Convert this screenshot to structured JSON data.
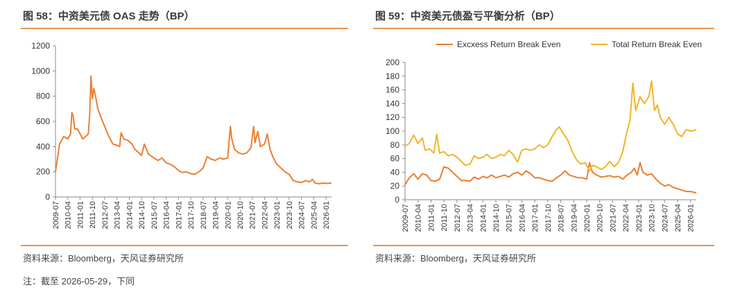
{
  "colors": {
    "accent": "#e6954f",
    "excess": "#ec7d31",
    "total": "#f0b429"
  },
  "left": {
    "title": "图 58：中资美元债 OAS 走势（BP）",
    "source": "资料来源：Bloomberg，天风证券研究所",
    "chart_data": {
      "type": "line",
      "title": "图 58：中资美元债 OAS 走势（BP）",
      "ylim": [
        0,
        1200
      ],
      "yticks": [
        "0",
        "200",
        "400",
        "600",
        "800",
        "1000",
        "1200"
      ],
      "xticks": [
        "2009-07",
        "2010-04",
        "2011-01",
        "2011-10",
        "2012-07",
        "2013-04",
        "2014-01",
        "2014-10",
        "2015-07",
        "2016-04",
        "2017-01",
        "2017-10",
        "2018-07",
        "2019-04",
        "2020-01",
        "2020-10",
        "2021-07",
        "2022-04",
        "2023-01",
        "2023-10",
        "2024-07",
        "2025-04",
        "2026-01"
      ],
      "series": [
        {
          "color": "#ec7d31",
          "points": [
            [
              "2009-07",
              200
            ],
            [
              "2009-10",
              420
            ],
            [
              "2010-01",
              480
            ],
            [
              "2010-04",
              460
            ],
            [
              "2010-06",
              500
            ],
            [
              "2010-07",
              670
            ],
            [
              "2010-08",
              640
            ],
            [
              "2010-09",
              540
            ],
            [
              "2010-11",
              540
            ],
            [
              "2011-01",
              500
            ],
            [
              "2011-03",
              460
            ],
            [
              "2011-05",
              480
            ],
            [
              "2011-07",
              500
            ],
            [
              "2011-08",
              650
            ],
            [
              "2011-09",
              960
            ],
            [
              "2011-10",
              780
            ],
            [
              "2011-11",
              860
            ],
            [
              "2011-12",
              820
            ],
            [
              "2012-02",
              700
            ],
            [
              "2012-04",
              640
            ],
            [
              "2012-07",
              560
            ],
            [
              "2012-10",
              480
            ],
            [
              "2013-01",
              420
            ],
            [
              "2013-04",
              410
            ],
            [
              "2013-06",
              400
            ],
            [
              "2013-07",
              510
            ],
            [
              "2013-09",
              460
            ],
            [
              "2013-12",
              450
            ],
            [
              "2014-03",
              420
            ],
            [
              "2014-05",
              380
            ],
            [
              "2014-08",
              350
            ],
            [
              "2014-10",
              330
            ],
            [
              "2014-12",
              420
            ],
            [
              "2015-03",
              340
            ],
            [
              "2015-07",
              310
            ],
            [
              "2015-10",
              290
            ],
            [
              "2016-01",
              310
            ],
            [
              "2016-04",
              270
            ],
            [
              "2016-07",
              260
            ],
            [
              "2016-10",
              240
            ],
            [
              "2017-01",
              210
            ],
            [
              "2017-04",
              195
            ],
            [
              "2017-07",
              200
            ],
            [
              "2017-10",
              185
            ],
            [
              "2018-01",
              180
            ],
            [
              "2018-04",
              200
            ],
            [
              "2018-07",
              230
            ],
            [
              "2018-10",
              320
            ],
            [
              "2019-01",
              300
            ],
            [
              "2019-04",
              290
            ],
            [
              "2019-07",
              310
            ],
            [
              "2019-10",
              300
            ],
            [
              "2020-01",
              310
            ],
            [
              "2020-03",
              560
            ],
            [
              "2020-04",
              460
            ],
            [
              "2020-06",
              380
            ],
            [
              "2020-09",
              350
            ],
            [
              "2020-12",
              340
            ],
            [
              "2021-03",
              350
            ],
            [
              "2021-06",
              390
            ],
            [
              "2021-08",
              560
            ],
            [
              "2021-09",
              430
            ],
            [
              "2021-11",
              520
            ],
            [
              "2022-01",
              400
            ],
            [
              "2022-04",
              420
            ],
            [
              "2022-06",
              500
            ],
            [
              "2022-08",
              380
            ],
            [
              "2022-10",
              320
            ],
            [
              "2023-01",
              260
            ],
            [
              "2023-04",
              230
            ],
            [
              "2023-07",
              200
            ],
            [
              "2023-10",
              180
            ],
            [
              "2024-01",
              130
            ],
            [
              "2024-04",
              120
            ],
            [
              "2024-07",
              115
            ],
            [
              "2024-10",
              130
            ],
            [
              "2025-01",
              120
            ],
            [
              "2025-03",
              140
            ],
            [
              "2025-05",
              110
            ],
            [
              "2025-08",
              105
            ],
            [
              "2025-11",
              110
            ],
            [
              "2026-02",
              108
            ],
            [
              "2026-05",
              112
            ]
          ]
        }
      ]
    }
  },
  "right": {
    "title": "图 59：中资美元债盈亏平衡分析（BP）",
    "source": "资料来源：Bloomberg，天风证券研究所",
    "chart_data": {
      "type": "line",
      "title": "图 59：中资美元债盈亏平衡分析（BP）",
      "ylim": [
        0,
        200
      ],
      "yticks": [
        "0",
        "20",
        "40",
        "60",
        "80",
        "100",
        "120",
        "140",
        "160",
        "180",
        "200"
      ],
      "xticks": [
        "2009-07",
        "2010-04",
        "2011-01",
        "2011-10",
        "2012-07",
        "2013-04",
        "2014-01",
        "2014-10",
        "2015-07",
        "2016-04",
        "2017-01",
        "2017-10",
        "2018-07",
        "2019-04",
        "2020-01",
        "2020-10",
        "2021-07",
        "2022-04",
        "2023-01",
        "2023-10",
        "2024-07",
        "2025-04",
        "2026-01"
      ],
      "legend_position": "top",
      "series": [
        {
          "name": "Excxess Return Break Even",
          "color": "#ec7d31",
          "points": [
            [
              "2009-07",
              22
            ],
            [
              "2009-10",
              32
            ],
            [
              "2010-01",
              38
            ],
            [
              "2010-04",
              30
            ],
            [
              "2010-07",
              38
            ],
            [
              "2010-10",
              36
            ],
            [
              "2011-01",
              28
            ],
            [
              "2011-04",
              27
            ],
            [
              "2011-07",
              30
            ],
            [
              "2011-10",
              48
            ],
            [
              "2012-01",
              46
            ],
            [
              "2012-04",
              40
            ],
            [
              "2012-07",
              34
            ],
            [
              "2012-10",
              28
            ],
            [
              "2013-01",
              28
            ],
            [
              "2013-04",
              27
            ],
            [
              "2013-07",
              33
            ],
            [
              "2013-10",
              30
            ],
            [
              "2014-01",
              34
            ],
            [
              "2014-04",
              32
            ],
            [
              "2014-07",
              36
            ],
            [
              "2014-10",
              32
            ],
            [
              "2015-01",
              34
            ],
            [
              "2015-04",
              36
            ],
            [
              "2015-07",
              33
            ],
            [
              "2015-10",
              38
            ],
            [
              "2016-01",
              40
            ],
            [
              "2016-04",
              36
            ],
            [
              "2016-07",
              42
            ],
            [
              "2016-10",
              38
            ],
            [
              "2017-01",
              32
            ],
            [
              "2017-04",
              32
            ],
            [
              "2017-07",
              30
            ],
            [
              "2017-10",
              28
            ],
            [
              "2018-01",
              27
            ],
            [
              "2018-04",
              32
            ],
            [
              "2018-07",
              36
            ],
            [
              "2018-10",
              42
            ],
            [
              "2019-01",
              36
            ],
            [
              "2019-04",
              34
            ],
            [
              "2019-07",
              32
            ],
            [
              "2019-10",
              32
            ],
            [
              "2020-01",
              30
            ],
            [
              "2020-03",
              54
            ],
            [
              "2020-05",
              40
            ],
            [
              "2020-08",
              36
            ],
            [
              "2020-11",
              33
            ],
            [
              "2021-02",
              34
            ],
            [
              "2021-05",
              35
            ],
            [
              "2021-08",
              33
            ],
            [
              "2021-11",
              34
            ],
            [
              "2022-02",
              30
            ],
            [
              "2022-05",
              36
            ],
            [
              "2022-08",
              40
            ],
            [
              "2022-10",
              46
            ],
            [
              "2022-12",
              36
            ],
            [
              "2023-02",
              54
            ],
            [
              "2023-04",
              40
            ],
            [
              "2023-07",
              36
            ],
            [
              "2023-10",
              38
            ],
            [
              "2024-01",
              30
            ],
            [
              "2024-04",
              24
            ],
            [
              "2024-07",
              20
            ],
            [
              "2024-10",
              22
            ],
            [
              "2025-01",
              18
            ],
            [
              "2025-04",
              16
            ],
            [
              "2025-07",
              14
            ],
            [
              "2025-10",
              12
            ],
            [
              "2026-01",
              12
            ],
            [
              "2026-05",
              10
            ]
          ]
        },
        {
          "name": "Total Return Break Even",
          "color": "#f0b429",
          "points": [
            [
              "2009-07",
              78
            ],
            [
              "2009-10",
              82
            ],
            [
              "2010-01",
              94
            ],
            [
              "2010-04",
              82
            ],
            [
              "2010-07",
              90
            ],
            [
              "2010-09",
              72
            ],
            [
              "2010-12",
              74
            ],
            [
              "2011-03",
              68
            ],
            [
              "2011-05",
              95
            ],
            [
              "2011-07",
              68
            ],
            [
              "2011-10",
              70
            ],
            [
              "2012-01",
              64
            ],
            [
              "2012-04",
              66
            ],
            [
              "2012-07",
              62
            ],
            [
              "2012-10",
              56
            ],
            [
              "2013-01",
              50
            ],
            [
              "2013-04",
              52
            ],
            [
              "2013-07",
              64
            ],
            [
              "2013-10",
              60
            ],
            [
              "2014-01",
              62
            ],
            [
              "2014-04",
              66
            ],
            [
              "2014-07",
              60
            ],
            [
              "2014-10",
              62
            ],
            [
              "2015-01",
              66
            ],
            [
              "2015-04",
              64
            ],
            [
              "2015-07",
              72
            ],
            [
              "2015-10",
              66
            ],
            [
              "2016-01",
              55
            ],
            [
              "2016-04",
              72
            ],
            [
              "2016-07",
              74
            ],
            [
              "2016-10",
              72
            ],
            [
              "2017-01",
              74
            ],
            [
              "2017-04",
              80
            ],
            [
              "2017-07",
              76
            ],
            [
              "2017-10",
              80
            ],
            [
              "2018-01",
              92
            ],
            [
              "2018-04",
              102
            ],
            [
              "2018-06",
              106
            ],
            [
              "2018-09",
              96
            ],
            [
              "2018-12",
              86
            ],
            [
              "2019-03",
              70
            ],
            [
              "2019-06",
              58
            ],
            [
              "2019-09",
              52
            ],
            [
              "2019-12",
              54
            ],
            [
              "2020-03",
              42
            ],
            [
              "2020-05",
              50
            ],
            [
              "2020-08",
              48
            ],
            [
              "2020-11",
              44
            ],
            [
              "2021-02",
              48
            ],
            [
              "2021-05",
              56
            ],
            [
              "2021-08",
              48
            ],
            [
              "2021-11",
              54
            ],
            [
              "2022-02",
              70
            ],
            [
              "2022-05",
              100
            ],
            [
              "2022-07",
              115
            ],
            [
              "2022-09",
              170
            ],
            [
              "2022-11",
              130
            ],
            [
              "2023-02",
              150
            ],
            [
              "2023-05",
              140
            ],
            [
              "2023-08",
              150
            ],
            [
              "2023-10",
              173
            ],
            [
              "2023-12",
              130
            ],
            [
              "2024-02",
              138
            ],
            [
              "2024-04",
              120
            ],
            [
              "2024-07",
              110
            ],
            [
              "2024-10",
              120
            ],
            [
              "2025-01",
              110
            ],
            [
              "2025-04",
              96
            ],
            [
              "2025-07",
              92
            ],
            [
              "2025-10",
              102
            ],
            [
              "2026-01",
              100
            ],
            [
              "2026-05",
              102
            ]
          ]
        }
      ]
    }
  },
  "note": "注：截至 2026-05-29，下同"
}
